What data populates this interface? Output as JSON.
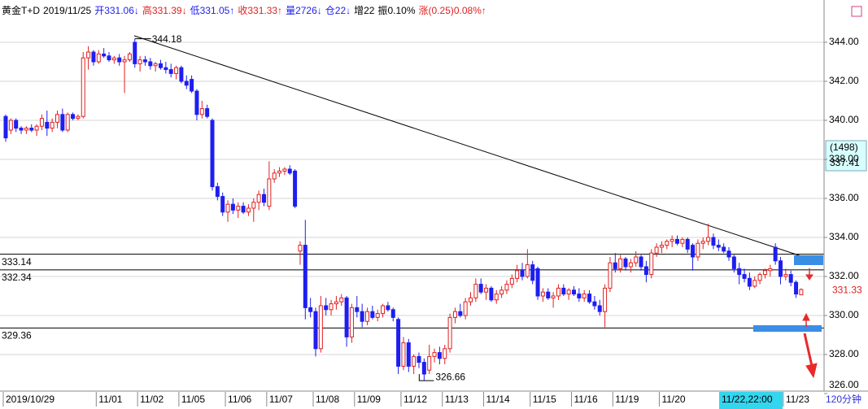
{
  "chart_data": {
    "type": "candlestick",
    "header": [
      {
        "text": "黄金T+D",
        "color": "#000000"
      },
      {
        "text": "2019/11/25",
        "color": "#000000"
      },
      {
        "text": "开331.06↓",
        "color": "#1e1ef0"
      },
      {
        "text": "高331.39↓",
        "color": "#e02020"
      },
      {
        "text": "低331.05↑",
        "color": "#1e1ef0"
      },
      {
        "text": "收331.33↑",
        "color": "#e02020"
      },
      {
        "text": "量2726↓",
        "color": "#1e1ef0"
      },
      {
        "text": "仓22↓",
        "color": "#1e1ef0"
      },
      {
        "text": "增22",
        "color": "#000000"
      },
      {
        "text": "振0.10%",
        "color": "#000000"
      },
      {
        "text": "涨(0.25)0.08%↑",
        "color": "#e02020"
      }
    ],
    "categories": [
      "2019/10/29",
      null,
      null,
      null,
      null,
      null,
      null,
      null,
      null,
      null,
      null,
      null,
      null,
      null,
      null,
      null,
      null,
      null,
      "11/01",
      null,
      null,
      null,
      null,
      null,
      null,
      null,
      "11/02",
      null,
      null,
      null,
      null,
      null,
      null,
      null,
      "11/05",
      null,
      null,
      null,
      null,
      null,
      null,
      null,
      null,
      "11/06",
      null,
      null,
      null,
      null,
      null,
      null,
      null,
      "11/07",
      null,
      null,
      null,
      null,
      null,
      null,
      null,
      null,
      "11/08",
      null,
      null,
      null,
      null,
      null,
      null,
      null,
      "11/09",
      null,
      null,
      null,
      null,
      null,
      null,
      null,
      null,
      "11/12",
      null,
      null,
      null,
      null,
      null,
      null,
      null,
      "11/13",
      null,
      null,
      null,
      null,
      null,
      null,
      null,
      "11/14",
      null,
      null,
      null,
      null,
      null,
      null,
      null,
      null,
      "11/15",
      null,
      null,
      null,
      null,
      null,
      null,
      null,
      "11/16",
      null,
      null,
      null,
      null,
      null,
      null,
      null,
      "11/19",
      null,
      null,
      null,
      null,
      null,
      null,
      null,
      null,
      "11/20",
      null,
      null,
      null,
      null,
      null,
      null,
      null,
      null,
      null,
      null,
      null,
      null,
      null,
      null,
      null,
      null,
      null,
      null,
      null,
      null,
      null,
      null,
      null,
      "11/23",
      null,
      null,
      null
    ],
    "open": [
      340.2,
      339.5,
      340.0,
      339.6,
      339.5,
      339.6,
      339.5,
      339.7,
      339.9,
      339.6,
      339.9,
      340.3,
      339.5,
      340.3,
      340.1,
      340.2,
      343.2,
      343.5,
      343.0,
      343.4,
      343.3,
      343.1,
      343.2,
      343.0,
      343.1,
      344.0,
      342.9,
      343.1,
      343.0,
      342.8,
      342.9,
      342.7,
      342.6,
      342.4,
      342.7,
      342.0,
      342.1,
      341.5,
      340.3,
      340.6,
      340.0,
      336.6,
      336.1,
      335.3,
      335.7,
      335.4,
      335.6,
      335.3,
      335.5,
      335.8,
      336.2,
      335.6,
      337.0,
      337.3,
      337.4,
      337.5,
      337.4,
      333.3,
      333.6,
      330.4,
      330.2,
      328.3,
      330.5,
      330.3,
      330.6,
      330.7,
      330.9,
      328.9,
      330.4,
      330.2,
      329.7,
      330.2,
      329.9,
      330.1,
      330.5,
      330.3,
      329.8,
      327.4,
      328.6,
      327.4,
      327.9,
      327.6,
      327.2,
      327.9,
      328.1,
      327.8,
      328.3,
      329.9,
      330.2,
      330.0,
      330.7,
      330.9,
      331.6,
      331.2,
      331.4,
      330.8,
      331.1,
      331.3,
      331.6,
      331.9,
      332.3,
      332.0,
      332.6,
      332.4,
      331.0,
      331.2,
      330.9,
      331.0,
      331.4,
      331.1,
      331.3,
      331.1,
      330.9,
      331.1,
      330.7,
      330.5,
      330.2,
      331.4,
      332.7,
      332.4,
      332.9,
      332.5,
      332.7,
      333.0,
      332.5,
      332.1,
      333.2,
      333.5,
      333.6,
      333.8,
      333.9,
      333.7,
      333.9,
      333.6,
      333.0,
      333.7,
      333.8,
      334.0,
      333.6,
      333.5,
      333.3,
      333.0,
      332.4,
      332.1,
      331.9,
      331.5,
      331.8,
      332.1,
      332.3,
      333.5,
      332.8,
      332.0,
      332.1,
      331.7,
      331.06
    ],
    "high": [
      340.3,
      340.1,
      340.1,
      339.7,
      339.7,
      339.8,
      339.8,
      340.3,
      340.5,
      340.1,
      340.5,
      340.6,
      340.4,
      340.4,
      340.3,
      343.5,
      343.8,
      343.6,
      343.6,
      343.7,
      343.5,
      343.3,
      343.4,
      343.3,
      343.5,
      344.18,
      343.3,
      343.3,
      343.2,
      343.0,
      343.1,
      343.0,
      342.9,
      342.8,
      342.8,
      342.3,
      342.3,
      341.6,
      341.0,
      340.8,
      340.1,
      336.8,
      336.3,
      335.9,
      336.0,
      335.8,
      335.8,
      335.7,
      336.0,
      336.4,
      336.5,
      337.9,
      337.5,
      337.6,
      337.6,
      337.7,
      337.5,
      333.8,
      334.9,
      330.9,
      330.4,
      331.0,
      330.9,
      330.8,
      331.0,
      331.1,
      331.0,
      330.6,
      331.0,
      330.6,
      330.4,
      330.5,
      330.3,
      330.6,
      330.7,
      330.4,
      329.9,
      328.9,
      328.8,
      328.0,
      328.1,
      327.8,
      328.5,
      328.3,
      328.4,
      328.5,
      330.1,
      330.4,
      330.6,
      330.9,
      331.2,
      331.9,
      331.9,
      331.6,
      331.5,
      331.3,
      331.5,
      331.8,
      332.1,
      332.6,
      332.7,
      333.4,
      332.8,
      332.5,
      331.4,
      331.4,
      331.2,
      331.6,
      331.6,
      331.4,
      331.5,
      331.4,
      331.3,
      331.3,
      331.0,
      330.8,
      331.6,
      333.0,
      333.2,
      333.1,
      333.0,
      332.9,
      333.3,
      333.1,
      332.8,
      333.4,
      333.7,
      333.8,
      333.9,
      334.1,
      334.1,
      334.0,
      334.0,
      333.7,
      333.9,
      334.0,
      334.7,
      334.2,
      333.9,
      333.7,
      333.5,
      333.1,
      332.7,
      332.4,
      332.2,
      332.0,
      332.2,
      332.4,
      332.6,
      333.7,
      333.0,
      332.4,
      332.3,
      331.8,
      331.39
    ],
    "low": [
      338.9,
      339.3,
      339.4,
      339.3,
      339.3,
      339.4,
      339.2,
      339.5,
      339.2,
      339.4,
      339.6,
      339.4,
      339.4,
      340.0,
      340.0,
      340.1,
      342.6,
      342.8,
      342.9,
      343.2,
      343.0,
      342.9,
      342.8,
      341.4,
      343.0,
      342.7,
      342.5,
      342.8,
      342.6,
      342.5,
      342.6,
      342.4,
      342.2,
      342.1,
      341.9,
      341.6,
      341.4,
      340.0,
      340.1,
      340.1,
      336.4,
      335.9,
      335.1,
      334.8,
      335.2,
      335.0,
      335.2,
      335.1,
      334.8,
      335.4,
      335.6,
      335.4,
      336.8,
      337.1,
      337.2,
      337.2,
      335.5,
      332.6,
      329.8,
      329.9,
      327.9,
      328.1,
      330.0,
      330.0,
      330.3,
      330.5,
      328.4,
      328.6,
      329.9,
      329.4,
      329.5,
      329.8,
      329.7,
      329.9,
      330.2,
      329.7,
      327.0,
      327.2,
      327.1,
      327.0,
      327.3,
      326.66,
      327.0,
      327.6,
      327.5,
      327.5,
      328.1,
      329.6,
      329.9,
      329.8,
      330.5,
      330.7,
      331.1,
      330.8,
      330.7,
      330.6,
      330.9,
      331.1,
      331.4,
      331.7,
      331.8,
      331.9,
      331.6,
      330.8,
      330.7,
      330.8,
      330.4,
      330.8,
      331.0,
      330.8,
      331.0,
      330.7,
      330.7,
      330.6,
      330.3,
      330.0,
      329.4,
      331.2,
      332.2,
      332.2,
      332.3,
      332.2,
      332.5,
      332.3,
      331.7,
      331.9,
      333.0,
      333.2,
      333.4,
      333.5,
      333.6,
      333.5,
      333.2,
      332.3,
      332.8,
      333.4,
      333.6,
      333.4,
      333.3,
      333.2,
      332.8,
      332.2,
      331.6,
      331.7,
      331.3,
      331.4,
      331.6,
      331.9,
      332.0,
      332.6,
      331.6,
      331.8,
      331.5,
      330.9,
      331.05
    ],
    "close": [
      339.1,
      340.0,
      339.6,
      339.5,
      339.6,
      339.5,
      339.7,
      340.1,
      339.6,
      339.9,
      340.3,
      339.5,
      340.3,
      340.1,
      340.2,
      343.2,
      343.5,
      343.0,
      343.4,
      343.3,
      343.1,
      343.2,
      343.0,
      343.1,
      343.4,
      342.9,
      343.1,
      343.0,
      342.8,
      342.9,
      342.7,
      342.6,
      342.4,
      342.7,
      342.0,
      341.8,
      341.5,
      340.3,
      340.6,
      340.2,
      336.6,
      336.1,
      335.3,
      335.7,
      335.4,
      335.6,
      335.3,
      335.5,
      335.8,
      336.2,
      335.8,
      337.0,
      337.3,
      337.4,
      337.5,
      337.3,
      335.6,
      333.6,
      330.4,
      330.2,
      328.3,
      330.5,
      330.3,
      330.6,
      330.7,
      330.9,
      328.9,
      330.4,
      330.2,
      329.7,
      330.2,
      329.9,
      330.1,
      330.5,
      330.3,
      329.9,
      327.4,
      328.6,
      327.4,
      327.9,
      327.6,
      327.0,
      327.9,
      328.1,
      327.8,
      328.3,
      329.9,
      330.2,
      330.0,
      330.7,
      330.9,
      331.6,
      331.2,
      331.4,
      330.8,
      331.1,
      331.3,
      331.6,
      331.9,
      332.3,
      332.0,
      332.6,
      331.8,
      331.0,
      331.2,
      330.9,
      331.0,
      331.4,
      331.1,
      331.3,
      331.1,
      330.9,
      331.1,
      330.7,
      330.5,
      330.2,
      331.4,
      332.7,
      332.4,
      332.9,
      332.5,
      332.7,
      333.0,
      332.5,
      332.1,
      333.2,
      333.5,
      333.6,
      333.8,
      333.9,
      333.7,
      333.9,
      333.4,
      333.0,
      333.7,
      333.8,
      334.0,
      333.6,
      333.5,
      333.3,
      333.0,
      332.4,
      332.1,
      331.9,
      331.5,
      331.8,
      332.1,
      332.3,
      332.4,
      332.8,
      332.0,
      332.1,
      331.7,
      331.1,
      331.33
    ],
    "up_color": "#e02020",
    "down_color": "#1e1ef0",
    "ylim": [
      326,
      345
    ],
    "yticks": [
      {
        "value": 326,
        "label": "326.00"
      },
      {
        "value": 328,
        "label": "328.00"
      },
      {
        "value": 330,
        "label": "330.00"
      },
      {
        "value": 332,
        "label": "332.00"
      },
      {
        "value": 334,
        "label": "334.00"
      },
      {
        "value": 336,
        "label": "336.00"
      },
      {
        "value": 338,
        "label": "338.00"
      },
      {
        "value": 340,
        "label": "340.00"
      },
      {
        "value": 342,
        "label": "342.00"
      },
      {
        "value": 344,
        "label": "344.00"
      }
    ],
    "grid": true,
    "hlines": [
      333.14,
      332.34,
      329.36
    ],
    "cursor_x": "11/22,22:00",
    "cursor_info": {
      "count": "(1498)",
      "price": 337.41
    },
    "period": "120分钟"
  }
}
